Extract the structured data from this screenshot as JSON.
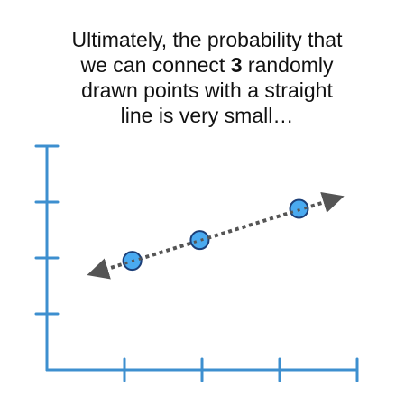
{
  "caption": {
    "line1": "Ultimately, the probability that",
    "line2_pre": "we can connect ",
    "line2_bold": "3",
    "line2_post": " randomly",
    "line3": "drawn points with a straight",
    "line4": "line is very small…"
  },
  "colors": {
    "axis": "#3d8fcf",
    "point_fill": "#4aaaf0",
    "point_stroke": "#1c3f78",
    "fit_line": "#555555"
  },
  "chart_data": {
    "type": "scatter",
    "title": "",
    "xlabel": "",
    "ylabel": "",
    "xlim": [
      0,
      4
    ],
    "ylim": [
      0,
      4
    ],
    "grid": false,
    "x_ticks": [
      1,
      2,
      3,
      4
    ],
    "y_ticks": [
      1,
      2,
      3,
      4
    ],
    "points": [
      {
        "x": 1.1,
        "y": 1.95
      },
      {
        "x": 1.97,
        "y": 2.32
      },
      {
        "x": 3.25,
        "y": 2.88
      }
    ],
    "fit_line": {
      "style": "dotted",
      "arrows": "both",
      "from": {
        "x": 0.65,
        "y": 1.75
      },
      "to": {
        "x": 3.7,
        "y": 3.05
      }
    }
  }
}
